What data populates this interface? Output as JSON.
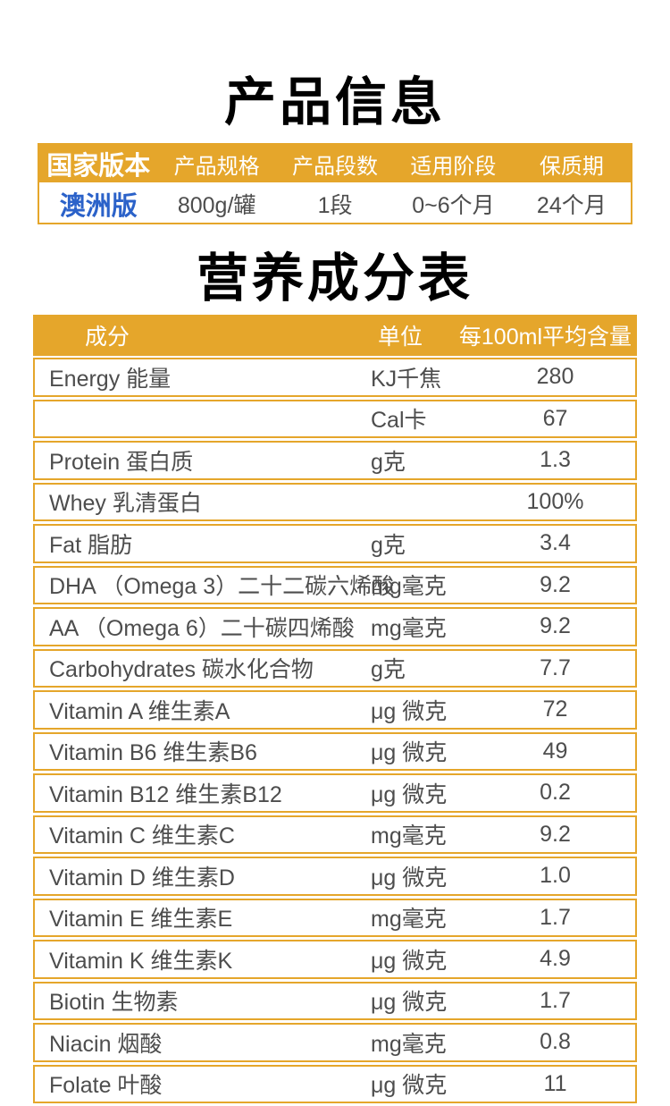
{
  "titles": {
    "product_info": "产品信息",
    "nutrition_table": "营养成分表"
  },
  "colors": {
    "accent_orange": "#E5A62B",
    "link_blue": "#2B62C9",
    "body_text": "#4D4D4D",
    "header_text": "#FFFFFF",
    "title_text": "#000000"
  },
  "product_info": {
    "headers": [
      "国家版本",
      "产品规格",
      "产品段数",
      "适用阶段",
      "保质期"
    ],
    "row": [
      "澳洲版",
      "800g/罐",
      "1段",
      "0~6个月",
      "24个月"
    ]
  },
  "nutrition": {
    "headers": {
      "name": "成分",
      "unit": "单位",
      "amount": "每100ml平均含量"
    },
    "rows": [
      {
        "name": "Energy 能量",
        "unit": "KJ千焦",
        "amount": "280"
      },
      {
        "name": "",
        "unit": "Cal卡",
        "amount": "67"
      },
      {
        "name": "Protein 蛋白质",
        "unit": "g克",
        "amount": "1.3"
      },
      {
        "name": "Whey 乳清蛋白",
        "unit": "",
        "amount": "100%"
      },
      {
        "name": "Fat 脂肪",
        "unit": "g克",
        "amount": "3.4"
      },
      {
        "name": "DHA （Omega 3）二十二碳六烯酸",
        "unit": "mg毫克",
        "amount": "9.2"
      },
      {
        "name": "AA （Omega 6）二十碳四烯酸",
        "unit": "mg毫克",
        "amount": "9.2"
      },
      {
        "name": "Carbohydrates 碳水化合物",
        "unit": "g克",
        "amount": "7.7"
      },
      {
        "name": "Vitamin A 维生素A",
        "unit": "μg 微克",
        "amount": "72"
      },
      {
        "name": "Vitamin B6 维生素B6",
        "unit": "μg 微克",
        "amount": "49"
      },
      {
        "name": "Vitamin B12 维生素B12",
        "unit": "μg 微克",
        "amount": "0.2"
      },
      {
        "name": "Vitamin C 维生素C",
        "unit": "mg毫克",
        "amount": "9.2"
      },
      {
        "name": "Vitamin D 维生素D",
        "unit": "μg 微克",
        "amount": "1.0"
      },
      {
        "name": "Vitamin E 维生素E",
        "unit": "mg毫克",
        "amount": "1.7"
      },
      {
        "name": "Vitamin K 维生素K",
        "unit": "μg 微克",
        "amount": "4.9"
      },
      {
        "name": "Biotin 生物素",
        "unit": "μg 微克",
        "amount": "1.7"
      },
      {
        "name": "Niacin 烟酸",
        "unit": "mg毫克",
        "amount": "0.8"
      },
      {
        "name": "Folate 叶酸",
        "unit": "μg 微克",
        "amount": "11"
      }
    ]
  }
}
